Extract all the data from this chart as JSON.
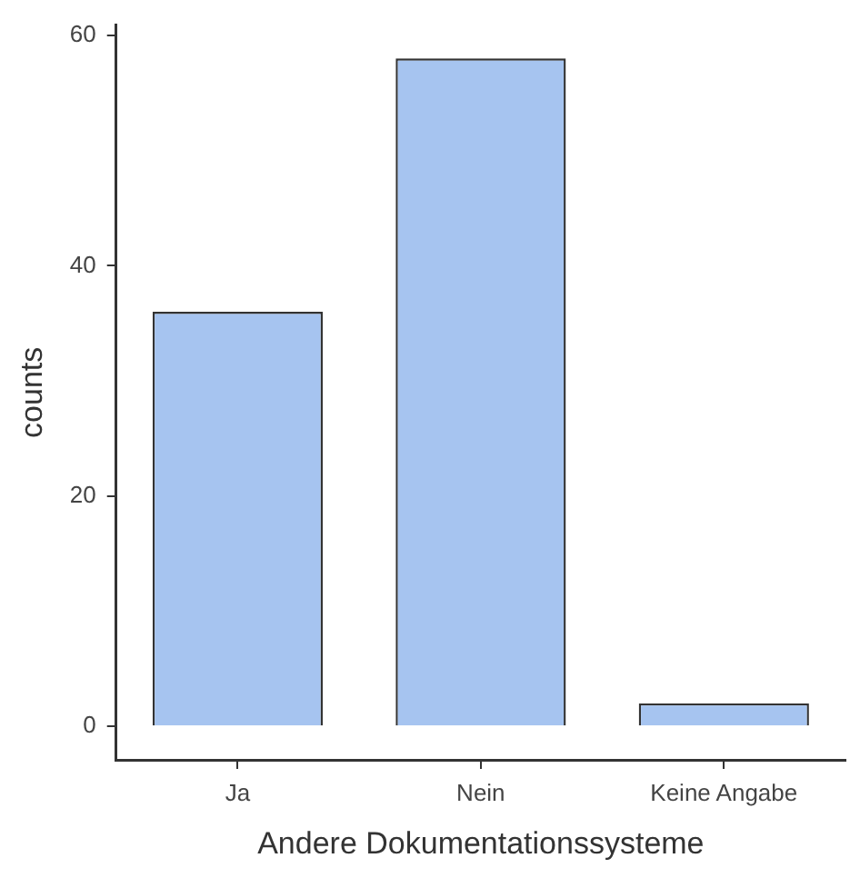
{
  "chart_data": {
    "type": "bar",
    "xlabel": "Andere Dokumentationssysteme",
    "ylabel": "counts",
    "categories": [
      "Ja",
      "Nein",
      "Keine Angabe"
    ],
    "values": [
      36,
      58,
      2
    ],
    "color": "#a6c4f0",
    "ylim": [
      -2.9,
      60.9
    ],
    "yticks": [
      0,
      20,
      40,
      60
    ],
    "grid": false,
    "legend": false
  }
}
